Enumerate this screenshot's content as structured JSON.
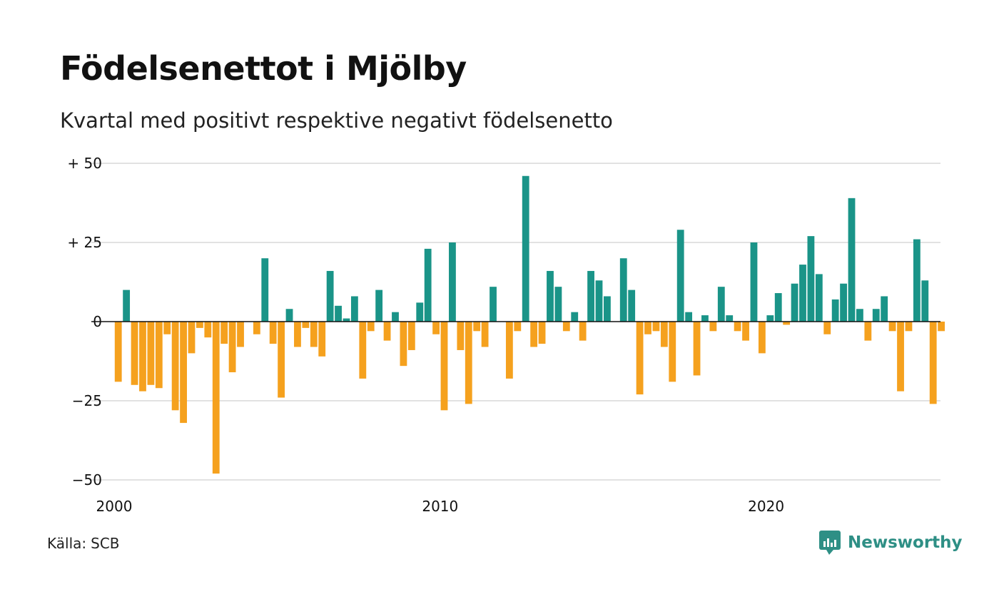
{
  "title": "Födelsenettot i Mjölby",
  "subtitle": "Kvartal med positivt respektive negativt födelsenetto",
  "source": {
    "label": "Källa:",
    "value": "SCB"
  },
  "brand": {
    "name": "Newsworthy",
    "icon": "newsworthy-logo-icon"
  },
  "colors": {
    "positive": "#1a9488",
    "negative": "#f5a11e",
    "grid": "#e2e2e2",
    "zero": "#111111"
  },
  "chart_data": {
    "type": "bar",
    "title": "Födelsenettot i Mjölby",
    "subtitle": "Kvartal med positivt respektive negativt födelsenetto",
    "xlabel": "",
    "ylabel": "",
    "start": "2000-Q1",
    "x_ticks": [
      {
        "label": "2000",
        "year": 2000
      },
      {
        "label": "2010",
        "year": 2010
      },
      {
        "label": "2020",
        "year": 2020
      }
    ],
    "y_ticks": [
      {
        "label": "+ 50",
        "value": 50
      },
      {
        "label": "+ 25",
        "value": 25
      },
      {
        "label": "0",
        "value": 0
      },
      {
        "label": "−25",
        "value": -25
      },
      {
        "label": "−50",
        "value": -50
      }
    ],
    "ylim": [
      -50,
      50
    ],
    "grid": true,
    "legend": "none",
    "values": [
      -19,
      10,
      -20,
      -22,
      -20,
      -21,
      -4,
      -28,
      -32,
      -10,
      -2,
      -5,
      -48,
      -7,
      -16,
      -8,
      0,
      -4,
      20,
      -7,
      -24,
      4,
      -8,
      -2,
      -8,
      -11,
      16,
      5,
      1,
      8,
      -18,
      -3,
      10,
      -6,
      3,
      -14,
      -9,
      6,
      23,
      -4,
      -28,
      25,
      -9,
      -26,
      -3,
      -8,
      11,
      0,
      -18,
      -3,
      46,
      -8,
      -7,
      16,
      11,
      -3,
      3,
      -6,
      16,
      13,
      8,
      0,
      20,
      10,
      -23,
      -4,
      -3,
      -8,
      -19,
      29,
      3,
      -17,
      2,
      -3,
      11,
      2,
      -3,
      -6,
      25,
      -10,
      2,
      9,
      -1,
      12,
      18,
      27,
      15,
      -4,
      7,
      12,
      39,
      4,
      -6,
      4,
      8,
      -3,
      -22,
      -3,
      26,
      13,
      -26,
      -3
    ]
  }
}
